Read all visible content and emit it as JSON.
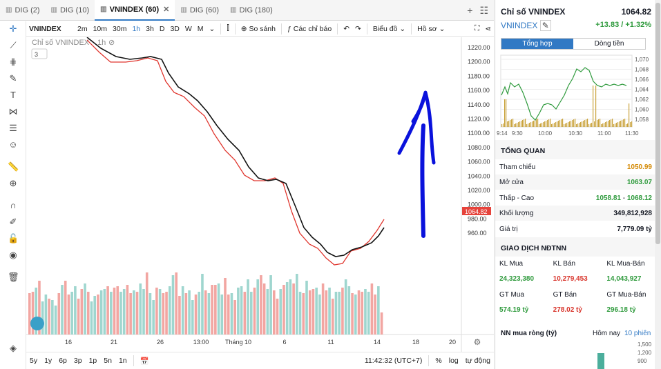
{
  "tabs": [
    {
      "label": "DIG (2)"
    },
    {
      "label": "DIG (10)"
    },
    {
      "label": "VNINDEX (60)",
      "active": true
    },
    {
      "label": "DIG (60)"
    },
    {
      "label": "DIG (180)"
    }
  ],
  "toolbar": {
    "symbol": "VNINDEX",
    "intervals": [
      "2m",
      "10m",
      "30m",
      "1h",
      "3h",
      "D",
      "3D",
      "W",
      "M"
    ],
    "selected_interval": "1h",
    "compare": "So sánh",
    "indicators": "Các chỉ báo",
    "chart_menu": "Biểu đồ",
    "template_menu": "Hồ sơ"
  },
  "legend": {
    "label": "Chỉ số VNINDEX",
    "interval": "1h",
    "collapse_count": "3"
  },
  "chart_data": {
    "type": "line",
    "price_last": "1064.82",
    "y_ticks": [
      "1220.00",
      "1200.00",
      "1180.00",
      "1160.00",
      "1140.00",
      "1120.00",
      "1100.00",
      "1080.00",
      "1060.00",
      "1040.00",
      "1020.00",
      "1000.00",
      "980.00",
      "960.00"
    ],
    "x_ticks": [
      "16",
      "21",
      "26",
      "13:00",
      "Tháng 10",
      "6",
      "11",
      "14",
      "18",
      "20"
    ]
  },
  "bottom": {
    "ranges": [
      "5y",
      "1y",
      "6p",
      "3p",
      "1p",
      "5n",
      "1n"
    ],
    "time": "11:42:32 (UTC+7)",
    "percent": "%",
    "log": "log",
    "auto": "tự động"
  },
  "panel": {
    "title": "Chỉ số VNINDEX",
    "price": "1064.82",
    "symbol": "VNINDEX",
    "change": "+13.83 / +1.32%",
    "seg": [
      "Tổng hợp",
      "Dòng tiền"
    ],
    "mini_y": [
      "1,070",
      "1,068",
      "1,066",
      "1,064",
      "1,062",
      "1,060",
      "1,058"
    ],
    "mini_x": [
      "9:14",
      "9:30",
      "10:00",
      "10:30",
      "11:00",
      "11:30"
    ],
    "overview_title": "TỔNG QUAN",
    "overview": [
      {
        "k": "Tham chiếu",
        "v": "1050.99"
      },
      {
        "k": "Mở cửa",
        "v": "1063.07"
      },
      {
        "k": "Thấp - Cao",
        "v": "1058.81",
        "v2": "1068.12"
      },
      {
        "k": "Khối lượng",
        "v": "349,812,928"
      },
      {
        "k": "Giá trị",
        "v": "7,779.09 tỷ"
      }
    ],
    "foreign_title": "GIAO DỊCH NĐTNN",
    "foreign_h1": [
      "KL Mua",
      "KL Bán",
      "KL Mua-Bán"
    ],
    "foreign_v1": [
      "24,323,380",
      "10,279,453",
      "14,043,927"
    ],
    "foreign_h2": [
      "GT Mua",
      "GT Bán",
      "GT Mua-Bán"
    ],
    "foreign_v2": [
      "574.19 tỷ",
      "278.02 tỷ",
      "296.18 tỷ"
    ],
    "net_title": "NN mua ròng (tỷ)",
    "net_today": "Hôm nay",
    "net_10": "10 phiên",
    "net_y": [
      "1,500",
      "1,200",
      "900"
    ]
  },
  "colors": {
    "up": "#2e9a3c",
    "down": "#d8342b",
    "ref": "#d48a06",
    "accent": "#3179c4"
  }
}
